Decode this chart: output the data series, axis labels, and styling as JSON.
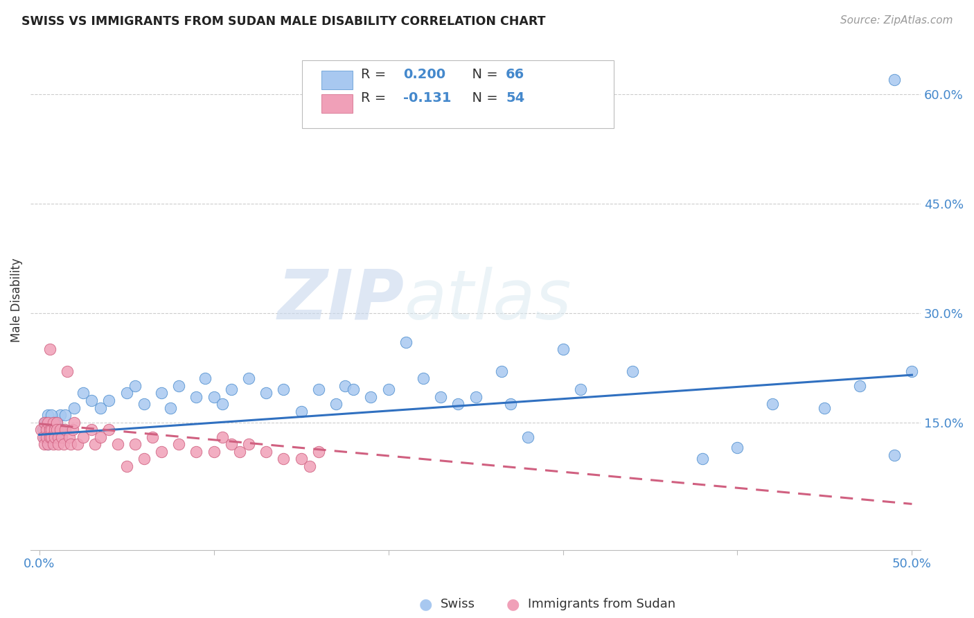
{
  "title": "SWISS VS IMMIGRANTS FROM SUDAN MALE DISABILITY CORRELATION CHART",
  "source": "Source: ZipAtlas.com",
  "ylabel": "Male Disability",
  "xlim": [
    -0.005,
    0.505
  ],
  "ylim": [
    -0.025,
    0.66
  ],
  "x_ticks": [
    0.0,
    0.1,
    0.2,
    0.3,
    0.4,
    0.5
  ],
  "x_tick_labels": [
    "0.0%",
    "",
    "",
    "",
    "",
    "50.0%"
  ],
  "y_ticks": [
    0.15,
    0.3,
    0.45,
    0.6
  ],
  "y_tick_labels": [
    "15.0%",
    "30.0%",
    "45.0%",
    "60.0%"
  ],
  "swiss_color": "#a8c8f0",
  "swiss_edge_color": "#5090d0",
  "sudan_color": "#f0a0b8",
  "sudan_edge_color": "#d06080",
  "trend_swiss_color": "#3070c0",
  "trend_sudan_color": "#d06080",
  "swiss_R": 0.2,
  "swiss_N": 66,
  "sudan_R": -0.131,
  "sudan_N": 54,
  "watermark_zip": "ZIP",
  "watermark_atlas": "atlas",
  "legend_label_swiss": "Swiss",
  "legend_label_sudan": "Immigrants from Sudan",
  "swiss_trend_x0": 0.0,
  "swiss_trend_x1": 0.5,
  "swiss_trend_y0": 0.133,
  "swiss_trend_y1": 0.215,
  "sudan_trend_x0": 0.0,
  "sudan_trend_x1": 0.5,
  "sudan_trend_y0": 0.148,
  "sudan_trend_y1": 0.038,
  "swiss_x": [
    0.002,
    0.003,
    0.004,
    0.005,
    0.006,
    0.007,
    0.008,
    0.009,
    0.01,
    0.011,
    0.012,
    0.013,
    0.003,
    0.004,
    0.005,
    0.006,
    0.007,
    0.008,
    0.009,
    0.01,
    0.015,
    0.02,
    0.025,
    0.03,
    0.035,
    0.04,
    0.05,
    0.055,
    0.06,
    0.07,
    0.075,
    0.08,
    0.09,
    0.095,
    0.1,
    0.105,
    0.11,
    0.12,
    0.13,
    0.14,
    0.15,
    0.16,
    0.17,
    0.175,
    0.18,
    0.19,
    0.2,
    0.21,
    0.22,
    0.23,
    0.24,
    0.25,
    0.265,
    0.27,
    0.28,
    0.3,
    0.31,
    0.34,
    0.38,
    0.4,
    0.42,
    0.45,
    0.47,
    0.49,
    0.49,
    0.5
  ],
  "swiss_y": [
    0.14,
    0.15,
    0.13,
    0.16,
    0.14,
    0.15,
    0.13,
    0.14,
    0.15,
    0.13,
    0.16,
    0.14,
    0.13,
    0.15,
    0.12,
    0.14,
    0.16,
    0.13,
    0.15,
    0.14,
    0.16,
    0.17,
    0.19,
    0.18,
    0.17,
    0.18,
    0.19,
    0.2,
    0.175,
    0.19,
    0.17,
    0.2,
    0.185,
    0.21,
    0.185,
    0.175,
    0.195,
    0.21,
    0.19,
    0.195,
    0.165,
    0.195,
    0.175,
    0.2,
    0.195,
    0.185,
    0.195,
    0.26,
    0.21,
    0.185,
    0.175,
    0.185,
    0.22,
    0.175,
    0.13,
    0.25,
    0.195,
    0.22,
    0.1,
    0.115,
    0.175,
    0.17,
    0.2,
    0.62,
    0.105,
    0.22
  ],
  "sudan_x": [
    0.001,
    0.002,
    0.003,
    0.003,
    0.004,
    0.004,
    0.005,
    0.005,
    0.006,
    0.006,
    0.006,
    0.007,
    0.007,
    0.008,
    0.008,
    0.009,
    0.009,
    0.01,
    0.01,
    0.011,
    0.011,
    0.012,
    0.013,
    0.014,
    0.015,
    0.016,
    0.017,
    0.018,
    0.019,
    0.02,
    0.022,
    0.025,
    0.03,
    0.032,
    0.035,
    0.04,
    0.045,
    0.05,
    0.055,
    0.06,
    0.065,
    0.07,
    0.08,
    0.09,
    0.1,
    0.105,
    0.11,
    0.115,
    0.12,
    0.13,
    0.14,
    0.15,
    0.155,
    0.16
  ],
  "sudan_y": [
    0.14,
    0.13,
    0.15,
    0.12,
    0.14,
    0.13,
    0.15,
    0.12,
    0.14,
    0.13,
    0.25,
    0.14,
    0.13,
    0.15,
    0.12,
    0.14,
    0.13,
    0.15,
    0.14,
    0.13,
    0.12,
    0.14,
    0.13,
    0.12,
    0.14,
    0.22,
    0.13,
    0.12,
    0.14,
    0.15,
    0.12,
    0.13,
    0.14,
    0.12,
    0.13,
    0.14,
    0.12,
    0.09,
    0.12,
    0.1,
    0.13,
    0.11,
    0.12,
    0.11,
    0.11,
    0.13,
    0.12,
    0.11,
    0.12,
    0.11,
    0.1,
    0.1,
    0.09,
    0.11
  ]
}
